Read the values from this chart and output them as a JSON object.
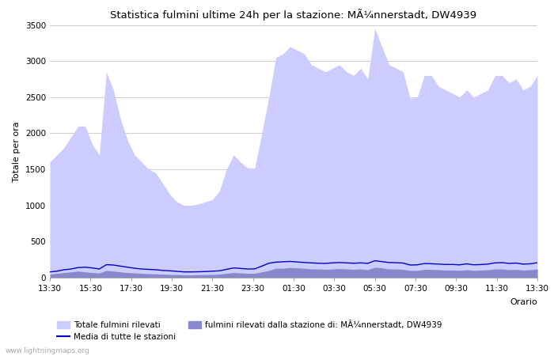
{
  "title": "Statistica fulmini ultime 24h per la stazione: MÃ¼nnerstadt, DW4939",
  "xlabel": "Orario",
  "ylabel": "Totale per ora",
  "ylim": [
    0,
    3500
  ],
  "yticks": [
    0,
    500,
    1000,
    1500,
    2000,
    2500,
    3000,
    3500
  ],
  "xtick_labels": [
    "13:30",
    "15:30",
    "17:30",
    "19:30",
    "21:30",
    "23:30",
    "01:30",
    "03:30",
    "05:30",
    "07:30",
    "09:30",
    "11:30",
    "13:30"
  ],
  "bg_color": "#ffffff",
  "plot_bg_color": "#ffffff",
  "grid_color": "#cccccc",
  "fill_total_color": "#ccccff",
  "fill_station_color": "#8888cc",
  "line_media_color": "#0000cc",
  "watermark": "www.lightningmaps.org",
  "legend_total": "Totale fulmini rilevati",
  "legend_media": "Media di tutte le stazioni",
  "legend_station": "fulmini rilevati dalla stazione di: MÃ¼nnerstadt, DW4939",
  "total_values": [
    1600,
    1700,
    1800,
    1950,
    2100,
    2100,
    1850,
    1700,
    2850,
    2600,
    2200,
    1900,
    1700,
    1600,
    1500,
    1450,
    1300,
    1150,
    1050,
    1000,
    1000,
    1020,
    1050,
    1080,
    1200,
    1500,
    1700,
    1600,
    1520,
    1520,
    2000,
    2500,
    3050,
    3100,
    3200,
    3150,
    3100,
    2950,
    2900,
    2850,
    2900,
    2950,
    2850,
    2800,
    2900,
    2750,
    3450,
    3200,
    2950,
    2900,
    2850,
    2480,
    2500,
    2800,
    2800,
    2650,
    2600,
    2550,
    2500,
    2600,
    2500,
    2550,
    2600,
    2800,
    2800,
    2700,
    2750,
    2600,
    2650,
    2800
  ],
  "station_values": [
    50,
    60,
    70,
    80,
    90,
    80,
    70,
    65,
    100,
    90,
    80,
    70,
    65,
    60,
    55,
    52,
    48,
    44,
    42,
    38,
    38,
    40,
    42,
    44,
    48,
    60,
    70,
    65,
    60,
    60,
    80,
    100,
    130,
    130,
    140,
    135,
    130,
    120,
    120,
    115,
    120,
    125,
    120,
    115,
    120,
    110,
    145,
    135,
    120,
    120,
    115,
    100,
    100,
    115,
    115,
    110,
    105,
    105,
    100,
    110,
    100,
    105,
    110,
    120,
    120,
    110,
    115,
    105,
    110,
    120
  ],
  "media_values": [
    80,
    90,
    110,
    120,
    140,
    145,
    135,
    120,
    180,
    175,
    160,
    145,
    130,
    120,
    115,
    110,
    100,
    95,
    88,
    80,
    80,
    82,
    85,
    90,
    95,
    115,
    135,
    128,
    120,
    122,
    160,
    200,
    215,
    220,
    225,
    218,
    210,
    205,
    200,
    198,
    205,
    210,
    205,
    200,
    205,
    198,
    235,
    222,
    210,
    208,
    202,
    175,
    178,
    196,
    193,
    188,
    183,
    183,
    178,
    192,
    178,
    182,
    188,
    205,
    208,
    198,
    202,
    188,
    192,
    208
  ],
  "n_points": 70,
  "figsize": [
    7.0,
    4.5
  ],
  "dpi": 100
}
